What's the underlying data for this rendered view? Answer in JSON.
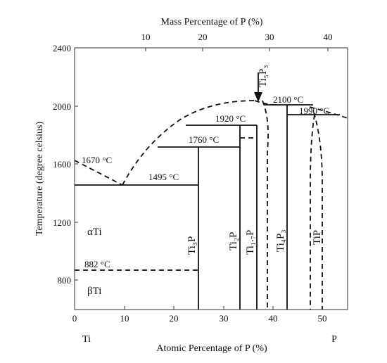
{
  "diagram": {
    "top_axis_title": "Mass Percentage of P (%)",
    "bottom_axis_title": "Atomic Percentage of P (%)",
    "y_axis_title": "Temperature (degree celsius)",
    "x_ticks": [
      "0",
      "10",
      "20",
      "30",
      "40",
      "50"
    ],
    "top_ticks": [
      "10",
      "20",
      "30",
      "40"
    ],
    "y_ticks": [
      "800",
      "1200",
      "1600",
      "2000",
      "2400"
    ],
    "end_labels": {
      "left": "Ti",
      "right": "P"
    },
    "phases": {
      "alpha": "αTi",
      "beta": "βTi",
      "ti3p": "Ti₃P",
      "ti2p": "Ti₂P",
      "ti17p": "Ti₁.₇P",
      "ti4p3": "Ti₄P₃",
      "tip": "TiP",
      "ti5p3": "Ti₅P₃"
    },
    "temperatures": {
      "t1670": "1670  °C",
      "t1495": "1495 °C",
      "t1760": "1760  °C",
      "t1920": "1920 °C",
      "t2100": "2100 °C",
      "t1990": "1990 °C",
      "t882": "882 °C"
    }
  }
}
